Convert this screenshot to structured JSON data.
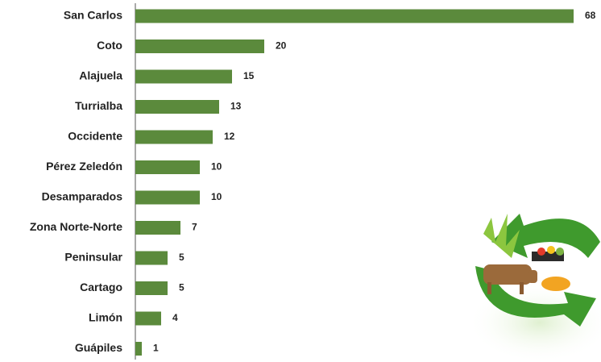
{
  "chart_data": {
    "type": "bar",
    "orientation": "horizontal",
    "categories": [
      "San Carlos",
      "Coto",
      "Alajuela",
      "Turrialba",
      "Occidente",
      "Pérez Zeledón",
      "Desamparados",
      "Zona Norte-Norte",
      "Peninsular",
      "Cartago",
      "Limón",
      "Guápiles"
    ],
    "values": [
      68,
      20,
      15,
      13,
      12,
      10,
      10,
      7,
      5,
      5,
      4,
      1
    ],
    "color": "#5b8a3c"
  }
}
